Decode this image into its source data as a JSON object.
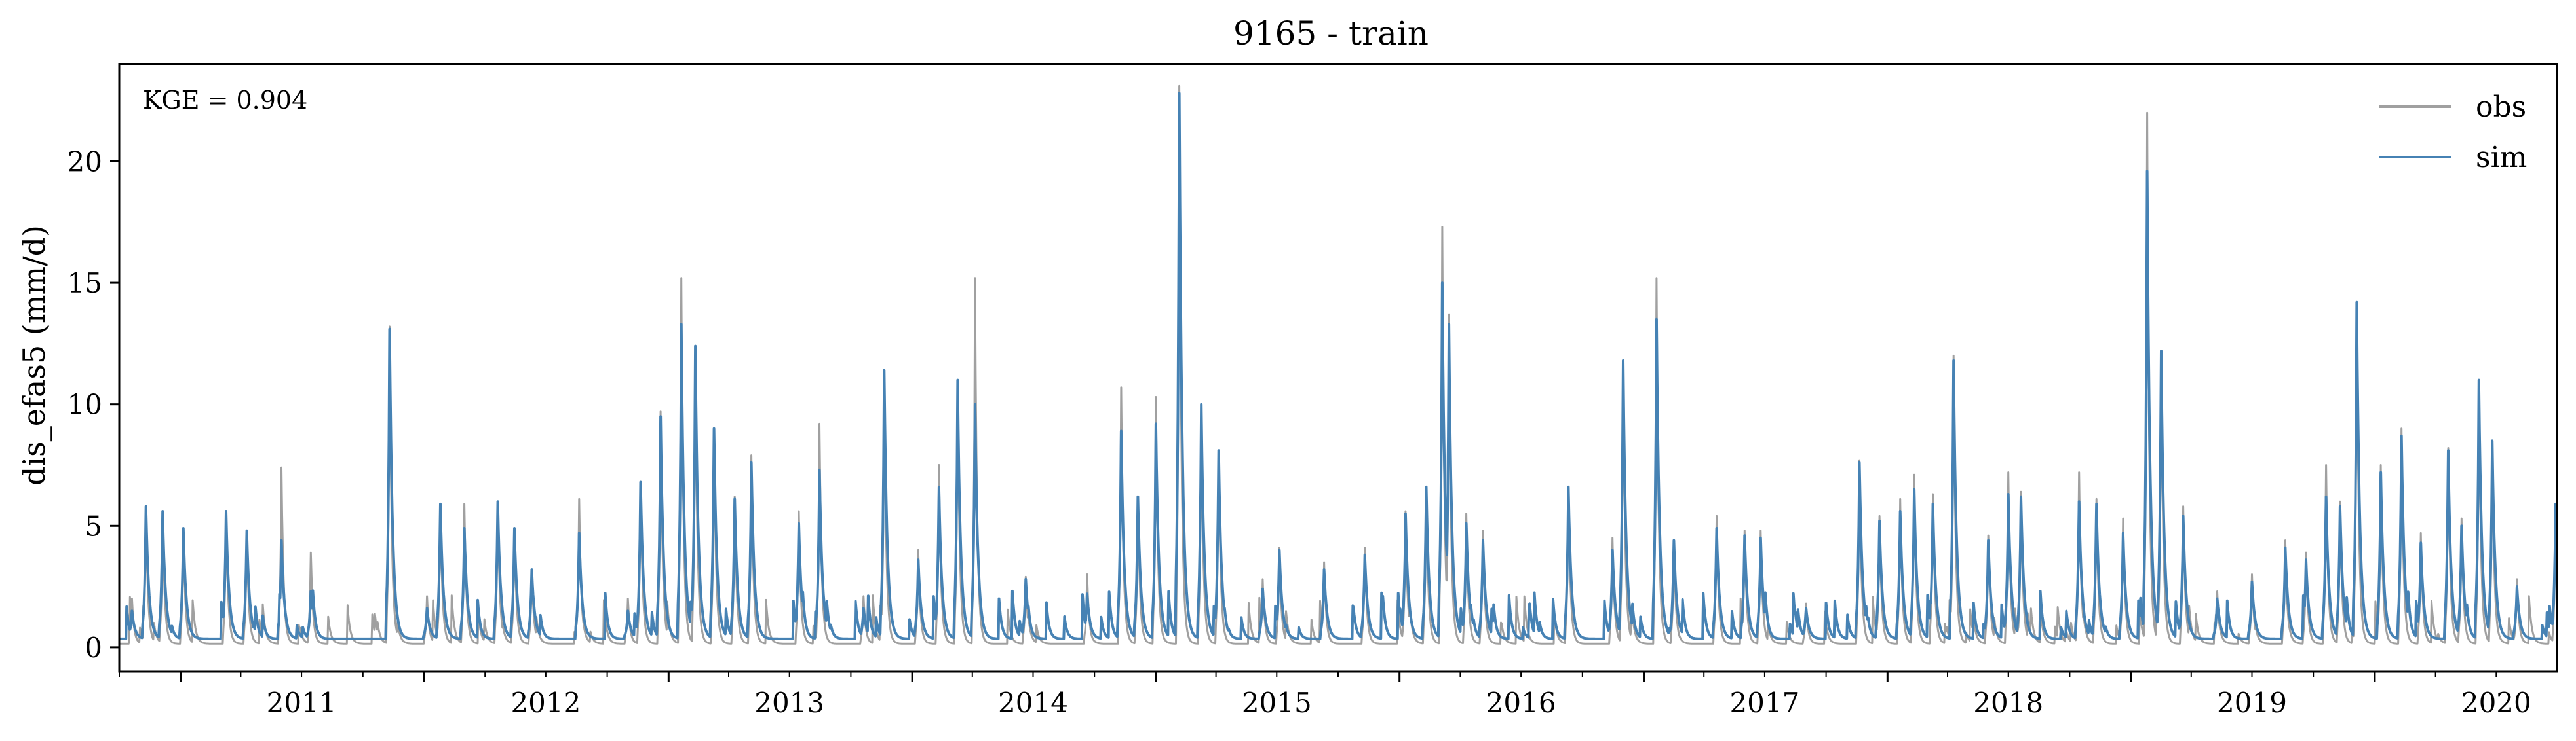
{
  "chart_data": {
    "type": "line",
    "title": "9165 - train",
    "xlabel": "",
    "ylabel": "dis_efas5 (mm/d)",
    "xlim": [
      "2010-10-01",
      "2020-09-30"
    ],
    "ylim": [
      -1,
      24
    ],
    "yticks": [
      0,
      5,
      10,
      15,
      20
    ],
    "xticks": [
      "2011",
      "2012",
      "2013",
      "2014",
      "2015",
      "2016",
      "2017",
      "2018",
      "2019",
      "2020"
    ],
    "annotation": "KGE = 0.904",
    "legend": {
      "placement": "top-right",
      "entries": [
        "obs",
        "sim"
      ]
    },
    "grid": false,
    "colors": {
      "obs": "#a0a0a0",
      "sim": "#4682b4",
      "axis": "#000000"
    },
    "series": [
      {
        "name": "obs",
        "baseline": 0.15,
        "peaks": [
          [
            "2010-10-20",
            2.0
          ],
          [
            "2010-11-10",
            5.6
          ],
          [
            "2010-12-05",
            5.4
          ],
          [
            "2011-01-05",
            4.8
          ],
          [
            "2011-03-10",
            5.5
          ],
          [
            "2011-04-10",
            4.7
          ],
          [
            "2011-06-01",
            7.4
          ],
          [
            "2011-07-15",
            3.9
          ],
          [
            "2011-11-10",
            13.2
          ],
          [
            "2012-01-05",
            2.1
          ],
          [
            "2012-01-25",
            5.9
          ],
          [
            "2012-03-01",
            5.9
          ],
          [
            "2012-04-20",
            6.0
          ],
          [
            "2012-05-15",
            4.9
          ],
          [
            "2012-06-10",
            3.2
          ],
          [
            "2012-08-20",
            6.1
          ],
          [
            "2012-11-01",
            2.0
          ],
          [
            "2012-11-20",
            6.8
          ],
          [
            "2012-12-20",
            9.7
          ],
          [
            "2013-01-20",
            15.2
          ],
          [
            "2013-02-10",
            12.4
          ],
          [
            "2013-03-10",
            9.0
          ],
          [
            "2013-04-10",
            6.2
          ],
          [
            "2013-05-05",
            7.9
          ],
          [
            "2013-07-15",
            5.6
          ],
          [
            "2013-08-15",
            9.2
          ],
          [
            "2013-10-20",
            2.1
          ],
          [
            "2013-11-20",
            11.0
          ],
          [
            "2014-01-10",
            4.0
          ],
          [
            "2014-02-10",
            7.5
          ],
          [
            "2014-03-10",
            11.0
          ],
          [
            "2014-04-05",
            15.2
          ],
          [
            "2014-06-20",
            2.9
          ],
          [
            "2014-09-20",
            3.0
          ],
          [
            "2014-11-10",
            10.7
          ],
          [
            "2014-12-05",
            6.2
          ],
          [
            "2015-01-01",
            10.3
          ],
          [
            "2015-02-05",
            23.1
          ],
          [
            "2015-03-10",
            9.5
          ],
          [
            "2015-04-05",
            8.1
          ],
          [
            "2015-06-10",
            2.8
          ],
          [
            "2015-07-05",
            4.1
          ],
          [
            "2015-09-10",
            3.5
          ],
          [
            "2015-11-10",
            4.1
          ],
          [
            "2016-01-10",
            5.6
          ],
          [
            "2016-02-10",
            6.6
          ],
          [
            "2016-03-05",
            17.3
          ],
          [
            "2016-03-15",
            13.7
          ],
          [
            "2016-04-10",
            5.5
          ],
          [
            "2016-05-05",
            4.8
          ],
          [
            "2016-09-10",
            6.6
          ],
          [
            "2016-11-15",
            4.5
          ],
          [
            "2016-12-01",
            11.8
          ],
          [
            "2017-01-20",
            15.2
          ],
          [
            "2017-02-15",
            4.3
          ],
          [
            "2017-04-20",
            5.4
          ],
          [
            "2017-06-01",
            4.8
          ],
          [
            "2017-06-25",
            4.8
          ],
          [
            "2017-09-01",
            1.8
          ],
          [
            "2017-11-20",
            7.7
          ],
          [
            "2017-12-20",
            5.4
          ],
          [
            "2018-01-20",
            6.1
          ],
          [
            "2018-02-10",
            7.1
          ],
          [
            "2018-03-10",
            6.3
          ],
          [
            "2018-04-10",
            12.0
          ],
          [
            "2018-06-01",
            4.6
          ],
          [
            "2018-07-01",
            7.2
          ],
          [
            "2018-07-20",
            6.4
          ],
          [
            "2018-10-15",
            7.2
          ],
          [
            "2018-11-10",
            6.1
          ],
          [
            "2018-12-20",
            5.3
          ],
          [
            "2019-01-25",
            22.0
          ],
          [
            "2019-02-15",
            12.2
          ],
          [
            "2019-03-20",
            5.8
          ],
          [
            "2019-05-10",
            2.3
          ],
          [
            "2019-07-01",
            3.0
          ],
          [
            "2019-08-20",
            4.4
          ],
          [
            "2019-09-20",
            3.9
          ],
          [
            "2019-10-20",
            7.5
          ],
          [
            "2019-11-10",
            6.0
          ],
          [
            "2019-12-05",
            14.1
          ],
          [
            "2020-01-10",
            7.5
          ],
          [
            "2020-02-10",
            9.0
          ],
          [
            "2020-03-10",
            4.7
          ],
          [
            "2020-04-20",
            8.2
          ],
          [
            "2020-05-10",
            5.3
          ],
          [
            "2020-06-05",
            11.0
          ],
          [
            "2020-06-25",
            8.5
          ],
          [
            "2020-08-01",
            2.8
          ],
          [
            "2020-09-28",
            5.9
          ]
        ]
      },
      {
        "name": "sim",
        "baseline": 0.35,
        "peaks": [
          [
            "2010-10-20",
            1.5
          ],
          [
            "2010-11-10",
            5.8
          ],
          [
            "2010-12-05",
            5.6
          ],
          [
            "2011-01-05",
            4.9
          ],
          [
            "2011-03-10",
            5.6
          ],
          [
            "2011-04-10",
            4.8
          ],
          [
            "2011-06-01",
            4.4
          ],
          [
            "2011-07-15",
            2.3
          ],
          [
            "2011-11-10",
            13.1
          ],
          [
            "2012-01-05",
            1.6
          ],
          [
            "2012-01-25",
            5.9
          ],
          [
            "2012-03-01",
            4.9
          ],
          [
            "2012-04-20",
            6.0
          ],
          [
            "2012-05-15",
            4.9
          ],
          [
            "2012-06-10",
            3.2
          ],
          [
            "2012-08-20",
            4.7
          ],
          [
            "2012-11-01",
            1.5
          ],
          [
            "2012-11-20",
            6.8
          ],
          [
            "2012-12-20",
            9.5
          ],
          [
            "2013-01-20",
            13.3
          ],
          [
            "2013-02-10",
            12.4
          ],
          [
            "2013-03-10",
            9.0
          ],
          [
            "2013-04-10",
            6.1
          ],
          [
            "2013-05-05",
            7.6
          ],
          [
            "2013-07-15",
            5.1
          ],
          [
            "2013-08-15",
            7.3
          ],
          [
            "2013-10-20",
            1.6
          ],
          [
            "2013-11-20",
            11.4
          ],
          [
            "2014-01-10",
            3.6
          ],
          [
            "2014-02-10",
            6.6
          ],
          [
            "2014-03-10",
            11.0
          ],
          [
            "2014-04-05",
            10.0
          ],
          [
            "2014-06-20",
            2.8
          ],
          [
            "2014-09-20",
            2.2
          ],
          [
            "2014-11-10",
            8.9
          ],
          [
            "2014-12-05",
            6.2
          ],
          [
            "2015-01-01",
            9.2
          ],
          [
            "2015-02-05",
            22.8
          ],
          [
            "2015-03-10",
            10.0
          ],
          [
            "2015-04-05",
            8.1
          ],
          [
            "2015-06-10",
            2.4
          ],
          [
            "2015-07-05",
            4.0
          ],
          [
            "2015-09-10",
            3.2
          ],
          [
            "2015-11-10",
            3.8
          ],
          [
            "2016-01-10",
            5.5
          ],
          [
            "2016-02-10",
            6.6
          ],
          [
            "2016-03-05",
            15.0
          ],
          [
            "2016-03-15",
            13.3
          ],
          [
            "2016-04-10",
            5.1
          ],
          [
            "2016-05-05",
            4.4
          ],
          [
            "2016-09-10",
            6.6
          ],
          [
            "2016-11-15",
            4.0
          ],
          [
            "2016-12-01",
            11.8
          ],
          [
            "2017-01-20",
            13.5
          ],
          [
            "2017-02-15",
            4.4
          ],
          [
            "2017-04-20",
            4.9
          ],
          [
            "2017-06-01",
            4.6
          ],
          [
            "2017-06-25",
            4.5
          ],
          [
            "2017-09-01",
            1.6
          ],
          [
            "2017-11-20",
            7.6
          ],
          [
            "2017-12-20",
            5.2
          ],
          [
            "2018-01-20",
            5.6
          ],
          [
            "2018-02-10",
            6.5
          ],
          [
            "2018-03-10",
            5.9
          ],
          [
            "2018-04-10",
            11.8
          ],
          [
            "2018-06-01",
            4.4
          ],
          [
            "2018-07-01",
            6.3
          ],
          [
            "2018-07-20",
            6.2
          ],
          [
            "2018-10-15",
            6.0
          ],
          [
            "2018-11-10",
            5.9
          ],
          [
            "2018-12-20",
            4.7
          ],
          [
            "2019-01-25",
            19.6
          ],
          [
            "2019-02-15",
            12.2
          ],
          [
            "2019-03-20",
            5.4
          ],
          [
            "2019-05-10",
            2.0
          ],
          [
            "2019-07-01",
            2.7
          ],
          [
            "2019-08-20",
            4.1
          ],
          [
            "2019-09-20",
            3.6
          ],
          [
            "2019-10-20",
            6.2
          ],
          [
            "2019-11-10",
            5.8
          ],
          [
            "2019-12-05",
            14.2
          ],
          [
            "2020-01-10",
            7.2
          ],
          [
            "2020-02-10",
            8.7
          ],
          [
            "2020-03-10",
            4.3
          ],
          [
            "2020-04-20",
            8.1
          ],
          [
            "2020-05-10",
            5.0
          ],
          [
            "2020-06-05",
            11.0
          ],
          [
            "2020-06-25",
            8.5
          ],
          [
            "2020-08-01",
            2.5
          ],
          [
            "2020-09-28",
            5.9
          ]
        ]
      }
    ]
  }
}
